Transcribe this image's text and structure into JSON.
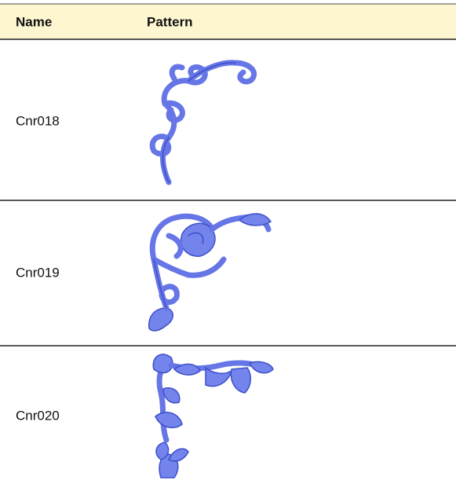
{
  "table": {
    "header": [
      "Name",
      "Pattern"
    ],
    "rows": [
      [
        "Cnr018"
      ],
      [
        "Cnr019"
      ],
      [
        "Cnr020"
      ]
    ]
  }
}
